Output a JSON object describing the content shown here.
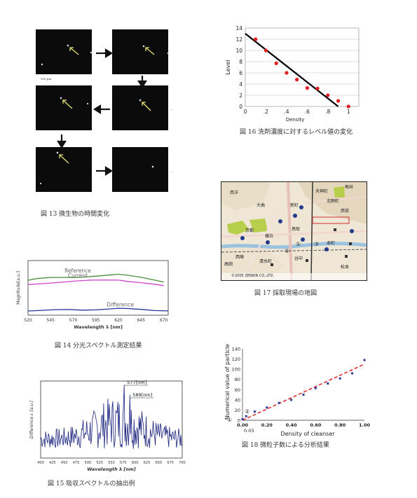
{
  "fig13": {
    "caption": "図 13 微生物の時間変化",
    "scale_label": "500 µm"
  },
  "fig14": {
    "caption": "図 14 分光スペクトル測定結果",
    "chart_data": {
      "type": "line",
      "xlabel": "Wavelength λ [nm]",
      "ylabel": "Magnitude[a.u.]",
      "xlim": [
        520,
        675
      ],
      "x_ticks": [
        "520",
        "545",
        "570",
        "595",
        "620",
        "645",
        "670"
      ],
      "series": [
        {
          "name": "Reference",
          "color": "#4a8a3a",
          "x": [
            520,
            530,
            545,
            560,
            575,
            590,
            605,
            620,
            630,
            645,
            660,
            670
          ],
          "y": [
            0.64,
            0.66,
            0.68,
            0.69,
            0.7,
            0.72,
            0.73,
            0.74,
            0.72,
            0.69,
            0.65,
            0.62
          ]
        },
        {
          "name": "Current",
          "color": "#cc44cc",
          "x": [
            520,
            530,
            545,
            560,
            575,
            590,
            605,
            620,
            630,
            645,
            660,
            670
          ],
          "y": [
            0.56,
            0.58,
            0.6,
            0.61,
            0.62,
            0.63,
            0.64,
            0.65,
            0.63,
            0.6,
            0.56,
            0.53
          ]
        },
        {
          "name": "Difference",
          "color": "#223399",
          "x": [
            520,
            535,
            550,
            565,
            580,
            595,
            610,
            620,
            630,
            645,
            660,
            675
          ],
          "y": [
            0.08,
            0.08,
            0.09,
            0.1,
            0.1,
            0.11,
            0.12,
            0.12,
            0.11,
            0.1,
            0.09,
            0.09
          ]
        }
      ]
    }
  },
  "fig15": {
    "caption": "図 15 吸収スペクトルの抽出例",
    "chart_data": {
      "type": "line",
      "xlabel": "Wavelength λ [nm]",
      "ylabel": "Difference ε [a.u.]",
      "xlim": [
        400,
        700
      ],
      "x_ticks": [
        "400",
        "425",
        "450",
        "475",
        "500",
        "525",
        "550",
        "575",
        "600",
        "625",
        "650",
        "675",
        "700"
      ],
      "annotations": [
        "577[nm]",
        "589[nm]"
      ],
      "peaks": [
        {
          "x": 577,
          "label": "577[nm]"
        },
        {
          "x": 589,
          "label": "589[nm]"
        }
      ]
    }
  },
  "fig16": {
    "caption": "図 16 洗剤濃度に対するレベル値の変化",
    "chart_data": {
      "type": "scatter",
      "xlabel": "Density",
      "ylabel": "Level",
      "xlim": [
        0,
        1.1
      ],
      "ylim": [
        0,
        14
      ],
      "x_ticks": [
        "0",
        ".2",
        ".4",
        ".6",
        ".8",
        "1"
      ],
      "y_ticks": [
        "0",
        "2",
        "4",
        "6",
        "8",
        "10",
        "12",
        "14"
      ],
      "points": {
        "x": [
          0.1,
          0.2,
          0.3,
          0.4,
          0.5,
          0.6,
          0.7,
          0.8,
          0.9,
          1.0
        ],
        "y": [
          12,
          10,
          7.7,
          6,
          4.8,
          3.3,
          3.2,
          2,
          1,
          0
        ]
      },
      "trendline": {
        "x": [
          0,
          0.9
        ],
        "y": [
          13,
          0
        ]
      },
      "grid": true
    }
  },
  "fig17": {
    "caption": "図 17 採取現場の地図",
    "labels": [
      "西洋",
      "天神町",
      "大曲",
      "新町",
      "梅井",
      "西宮",
      "北野町",
      "鳥取",
      "京都",
      "西陣",
      "横浜",
      "本町",
      "高田",
      "松本",
      "谷中",
      "清水町"
    ],
    "markers": [
      "①",
      "②",
      "③"
    ],
    "copyright": "©2005 ZENRIN CO.,LTD."
  },
  "fig18": {
    "caption": "図 18 微粒子数による分析結果",
    "chart_data": {
      "type": "scatter",
      "xlabel": "Density of cleanser",
      "ylabel": "Numerical value of particle",
      "xlim": [
        0,
        1
      ],
      "ylim": [
        0,
        140
      ],
      "x_ticks": [
        "0.00",
        "0.20",
        "0.40",
        "0.60",
        "0.80",
        "1.00"
      ],
      "y_ticks": [
        "0",
        "20",
        "40",
        "60",
        "80",
        "100",
        "120",
        "140"
      ],
      "annotations": [
        "①",
        "②",
        "0.03"
      ],
      "points": {
        "x": [
          0,
          0.03,
          0.1,
          0.2,
          0.3,
          0.4,
          0.5,
          0.6,
          0.7,
          0.8,
          0.9,
          1.0
        ],
        "y": [
          2,
          8,
          17,
          25,
          34,
          40,
          50,
          63,
          72,
          82,
          92,
          118
        ]
      },
      "trendline": {
        "x": [
          0,
          1.0
        ],
        "y": [
          0,
          110
        ]
      }
    }
  }
}
